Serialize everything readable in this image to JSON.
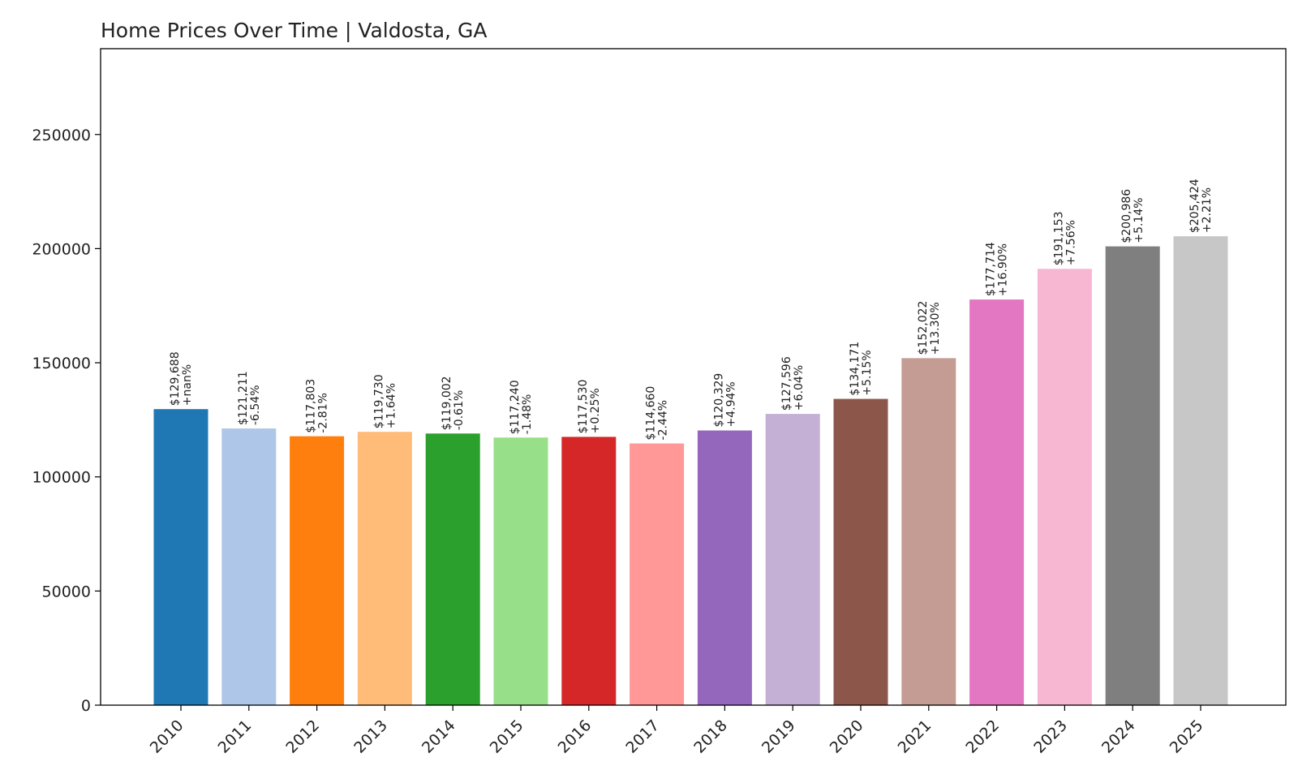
{
  "chart_data": {
    "type": "bar",
    "title": "Home Prices Over Time | Valdosta, GA",
    "xlabel": "",
    "ylabel": "",
    "categories": [
      "2010",
      "2011",
      "2012",
      "2013",
      "2014",
      "2015",
      "2016",
      "2017",
      "2018",
      "2019",
      "2020",
      "2021",
      "2022",
      "2023",
      "2024",
      "2025"
    ],
    "values": [
      129688,
      121211,
      117803,
      119730,
      119002,
      117240,
      117530,
      114660,
      120329,
      127596,
      134171,
      152022,
      177714,
      191153,
      200986,
      205424
    ],
    "value_labels": [
      "$129,688",
      "$121,211",
      "$117,803",
      "$119,730",
      "$119,002",
      "$117,240",
      "$117,530",
      "$114,660",
      "$120,329",
      "$127,596",
      "$134,171",
      "$152,022",
      "$177,714",
      "$191,153",
      "$200,986",
      "$205,424"
    ],
    "change_labels": [
      "+nan%",
      "-6.54%",
      "-2.81%",
      "+1.64%",
      "-0.61%",
      "-1.48%",
      "+0.25%",
      "-2.44%",
      "+4.94%",
      "+6.04%",
      "+5.15%",
      "+13.30%",
      "+16.90%",
      "+7.56%",
      "+5.14%",
      "+2.21%"
    ],
    "colors": [
      "#1f77b4",
      "#aec7e8",
      "#ff7f0e",
      "#ffbb78",
      "#2ca02c",
      "#98df8a",
      "#d62728",
      "#ff9896",
      "#9467bd",
      "#c5b0d5",
      "#8c564b",
      "#c49c94",
      "#e377c2",
      "#f7b6d2",
      "#7f7f7f",
      "#c7c7c7"
    ],
    "yticks": [
      0,
      50000,
      100000,
      150000,
      200000,
      250000
    ],
    "ytick_labels": [
      "0",
      "50000",
      "100000",
      "150000",
      "200000",
      "250000"
    ],
    "ylim": [
      0,
      287594
    ],
    "grid": false,
    "legend": "none"
  }
}
